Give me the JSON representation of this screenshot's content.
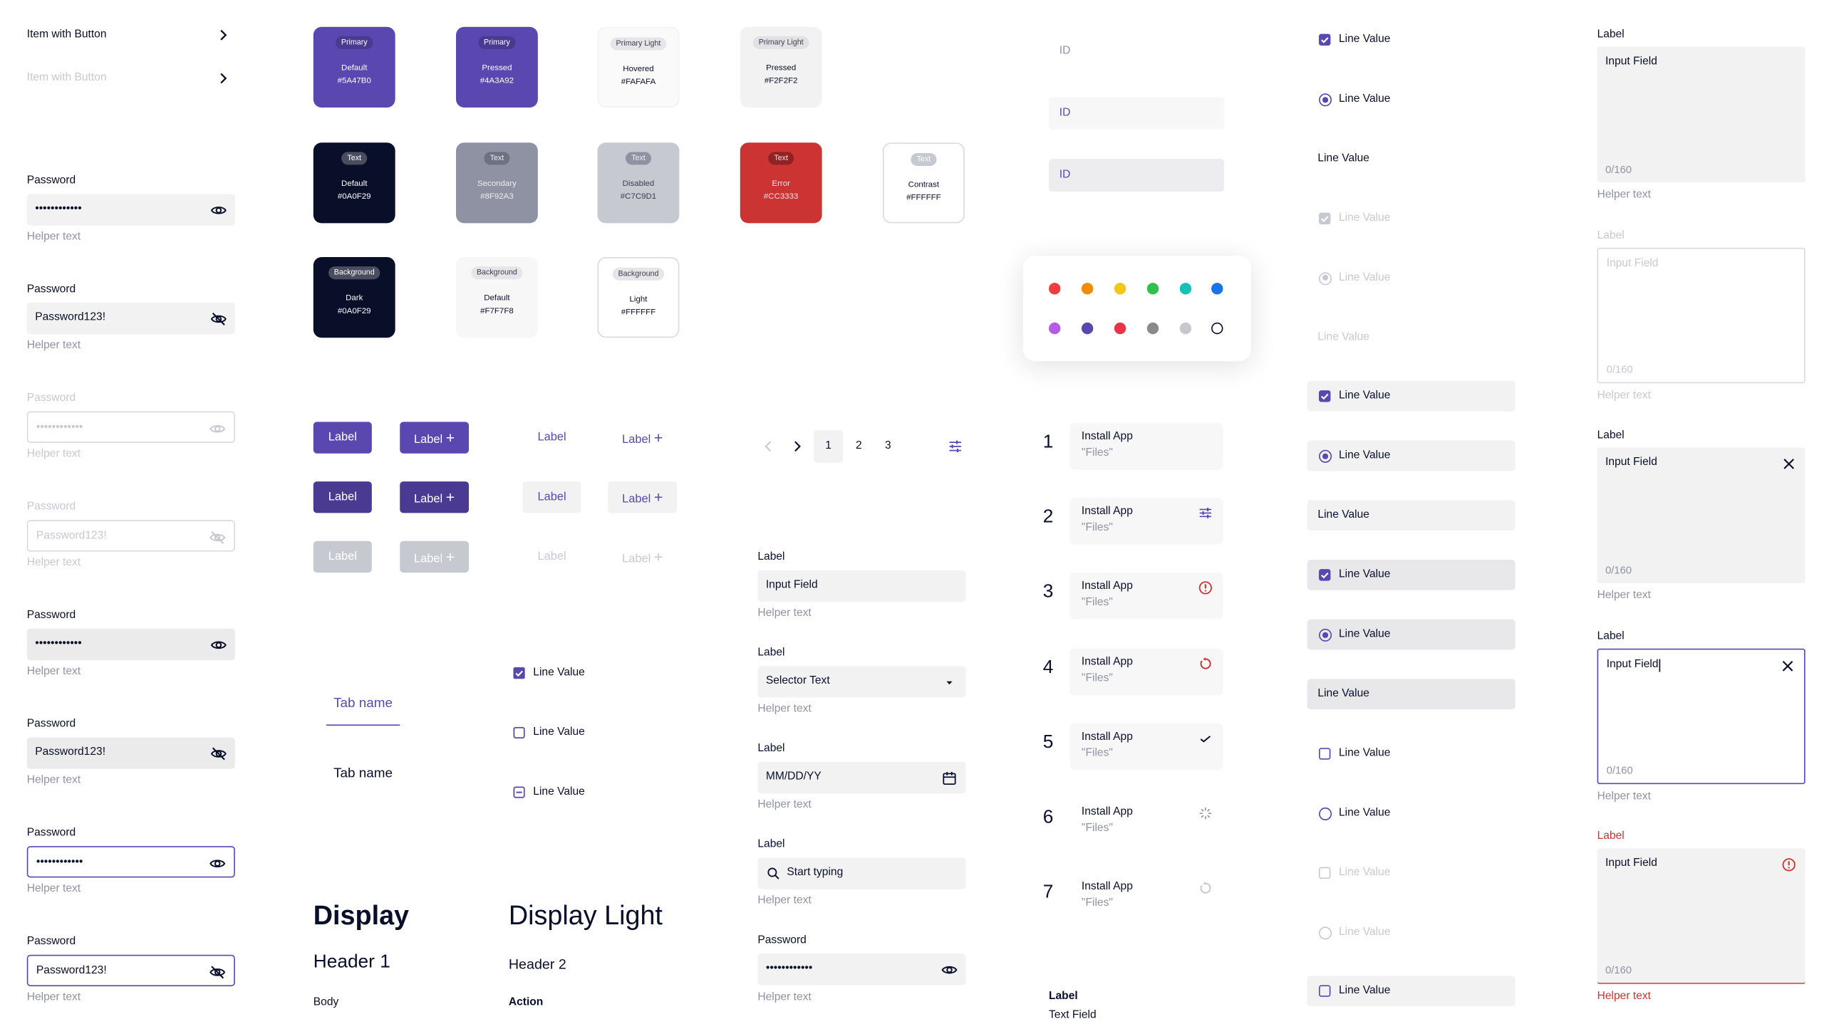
{
  "colors": {
    "primary": "#5A47B0",
    "primary_pressed": "#4A3A92",
    "text": "#0A0F29",
    "secondary": "#8F92A3",
    "disabled": "#C7C9D1",
    "error": "#CC3333"
  },
  "nav_items": [
    {
      "label": "Item with Button",
      "state": "default"
    },
    {
      "label": "Item with Button",
      "state": "disabled"
    }
  ],
  "passwords": [
    {
      "label": "Password",
      "value": "••••••••••••",
      "helper": "Helper text",
      "state": "default",
      "icon": "eye-icon"
    },
    {
      "label": "Password",
      "value": "Password123!",
      "helper": "Helper text",
      "state": "default",
      "icon": "eye-off-icon"
    },
    {
      "label": "Password",
      "value": "••••••••••••",
      "helper": "Helper text",
      "state": "disabled",
      "icon": "eye-icon"
    },
    {
      "label": "Password",
      "value": "Password123!",
      "helper": "Helper text",
      "state": "disabled",
      "icon": "eye-off-icon"
    },
    {
      "label": "Password",
      "value": "••••••••••••",
      "helper": "Helper text",
      "state": "hover",
      "icon": "eye-icon"
    },
    {
      "label": "Password",
      "value": "Password123!",
      "helper": "Helper text",
      "state": "hover",
      "icon": "eye-off-icon"
    },
    {
      "label": "Password",
      "value": "••••••••••••",
      "helper": "Helper text",
      "state": "focused",
      "icon": "eye-icon"
    },
    {
      "label": "Password",
      "value": "Password123!",
      "helper": "Helper text",
      "state": "focused",
      "icon": "eye-off-icon"
    }
  ],
  "swatches": [
    {
      "tag": "Primary",
      "name": "Default",
      "hex": "#5A47B0"
    },
    {
      "tag": "Primary",
      "name": "Pressed",
      "hex": "#4A3A92"
    },
    {
      "tag": "Primary Light",
      "name": "Hovered",
      "hex": "#FAFAFA"
    },
    {
      "tag": "Primary Light",
      "name": "Pressed",
      "hex": "#F2F2F2"
    },
    {
      "tag": "Text",
      "name": "Default",
      "hex": "#0A0F29"
    },
    {
      "tag": "Text",
      "name": "Secondary",
      "hex": "#8F92A3"
    },
    {
      "tag": "Text",
      "name": "Disabled",
      "hex": "#C7C9D1"
    },
    {
      "tag": "Text",
      "name": "Error",
      "hex": "#CC3333"
    },
    {
      "tag": "Text",
      "name": "Contrast",
      "hex": "#FFFFFF"
    },
    {
      "tag": "Background",
      "name": "Dark",
      "hex": "#0A0F29"
    },
    {
      "tag": "Background",
      "name": "Default",
      "hex": "#F7F7F8"
    },
    {
      "tag": "Background",
      "name": "Light",
      "hex": "#FFFFFF"
    }
  ],
  "buttons": {
    "label": "Label"
  },
  "tabs": [
    {
      "label": "Tab name",
      "selected": true
    },
    {
      "label": "Tab name",
      "selected": false
    }
  ],
  "checkboxes": [
    {
      "label": "Line Value",
      "state": "checked"
    },
    {
      "label": "Line Value",
      "state": "unchecked"
    },
    {
      "label": "Line Value",
      "state": "indeterminate"
    }
  ],
  "typography": {
    "display": "Display",
    "display_light": "Display Light",
    "header1": "Header 1",
    "header2": "Header 2",
    "body": "Body",
    "action": "Action"
  },
  "pagination": {
    "pages": [
      "1",
      "2",
      "3"
    ],
    "current": "1"
  },
  "form": {
    "input": {
      "label": "Label",
      "value": "Input Field",
      "helper": "Helper text"
    },
    "selector": {
      "label": "Label",
      "value": "Selector Text",
      "helper": "Helper text"
    },
    "date": {
      "label": "Label",
      "placeholder": "MM/DD/YY",
      "helper": "Helper text"
    },
    "search": {
      "label": "Label",
      "placeholder": "Start typing",
      "helper": "Helper text"
    },
    "password": {
      "label": "Password",
      "value": "••••••••••••",
      "helper": "Helper text"
    }
  },
  "id_fields": [
    "ID",
    "ID",
    "ID"
  ],
  "palette": [
    "#F03E3E",
    "#F08C00",
    "#F5C518",
    "#2FC14C",
    "#12C2B5",
    "#1A73E8",
    "#B25CE8",
    "#5A47B0",
    "#E8334A",
    "#8A8A8A",
    "#C8C8CC",
    "#FFFFFF"
  ],
  "install_list": [
    {
      "num": "1",
      "title": "Install App",
      "subtitle": "\"Files\"",
      "status": "none"
    },
    {
      "num": "2",
      "title": "Install App",
      "subtitle": "\"Files\"",
      "status": "settings"
    },
    {
      "num": "3",
      "title": "Install App",
      "subtitle": "\"Files\"",
      "status": "error"
    },
    {
      "num": "4",
      "title": "Install App",
      "subtitle": "\"Files\"",
      "status": "retry"
    },
    {
      "num": "5",
      "title": "Install App",
      "subtitle": "\"Files\"",
      "status": "done"
    },
    {
      "num": "6",
      "title": "Install App",
      "subtitle": "\"Files\"",
      "status": "loading"
    },
    {
      "num": "7",
      "title": "Install App",
      "subtitle": "\"Files\"",
      "status": "pending"
    }
  ],
  "text_field": {
    "label": "Label",
    "value": "Text Field"
  },
  "line_values": [
    {
      "label": "Line Value",
      "type": "checkbox",
      "checked": true,
      "state": "default"
    },
    {
      "label": "Line Value",
      "type": "radio",
      "checked": true,
      "state": "default"
    },
    {
      "label": "Line Value",
      "type": "plain",
      "state": "default"
    },
    {
      "label": "Line Value",
      "type": "checkbox",
      "checked": true,
      "state": "disabled"
    },
    {
      "label": "Line Value",
      "type": "radio",
      "checked": true,
      "state": "disabled"
    },
    {
      "label": "Line Value",
      "type": "plain",
      "state": "disabled"
    },
    {
      "label": "Line Value",
      "type": "checkbox",
      "checked": true,
      "state": "hover"
    },
    {
      "label": "Line Value",
      "type": "radio",
      "checked": true,
      "state": "hover"
    },
    {
      "label": "Line Value",
      "type": "plain",
      "state": "hover"
    },
    {
      "label": "Line Value",
      "type": "checkbox",
      "checked": true,
      "state": "pressed"
    },
    {
      "label": "Line Value",
      "type": "radio",
      "checked": true,
      "state": "pressed"
    },
    {
      "label": "Line Value",
      "type": "plain",
      "state": "pressed"
    },
    {
      "label": "Line Value",
      "type": "checkbox",
      "checked": false,
      "state": "default"
    },
    {
      "label": "Line Value",
      "type": "radio",
      "checked": false,
      "state": "default"
    },
    {
      "label": "Line Value",
      "type": "checkbox",
      "checked": false,
      "state": "disabled"
    },
    {
      "label": "Line Value",
      "type": "radio",
      "checked": false,
      "state": "disabled"
    },
    {
      "label": "Line Value",
      "type": "checkbox",
      "checked": false,
      "state": "hover"
    }
  ],
  "textareas": [
    {
      "label": "Label",
      "value": "Input Field",
      "counter": "0/160",
      "helper": "Helper text",
      "state": "default"
    },
    {
      "label": "Label",
      "value": "Input Field",
      "counter": "0/160",
      "helper": "Helper text",
      "state": "disabled"
    },
    {
      "label": "Label",
      "value": "Input Field",
      "counter": "0/160",
      "helper": "Helper text",
      "state": "filled"
    },
    {
      "label": "Label",
      "value": "Input Field",
      "counter": "0/160",
      "helper": "Helper text",
      "state": "focused"
    },
    {
      "label": "Label",
      "value": "Input Field",
      "counter": "0/160",
      "helper": "Helper text",
      "state": "error"
    }
  ]
}
